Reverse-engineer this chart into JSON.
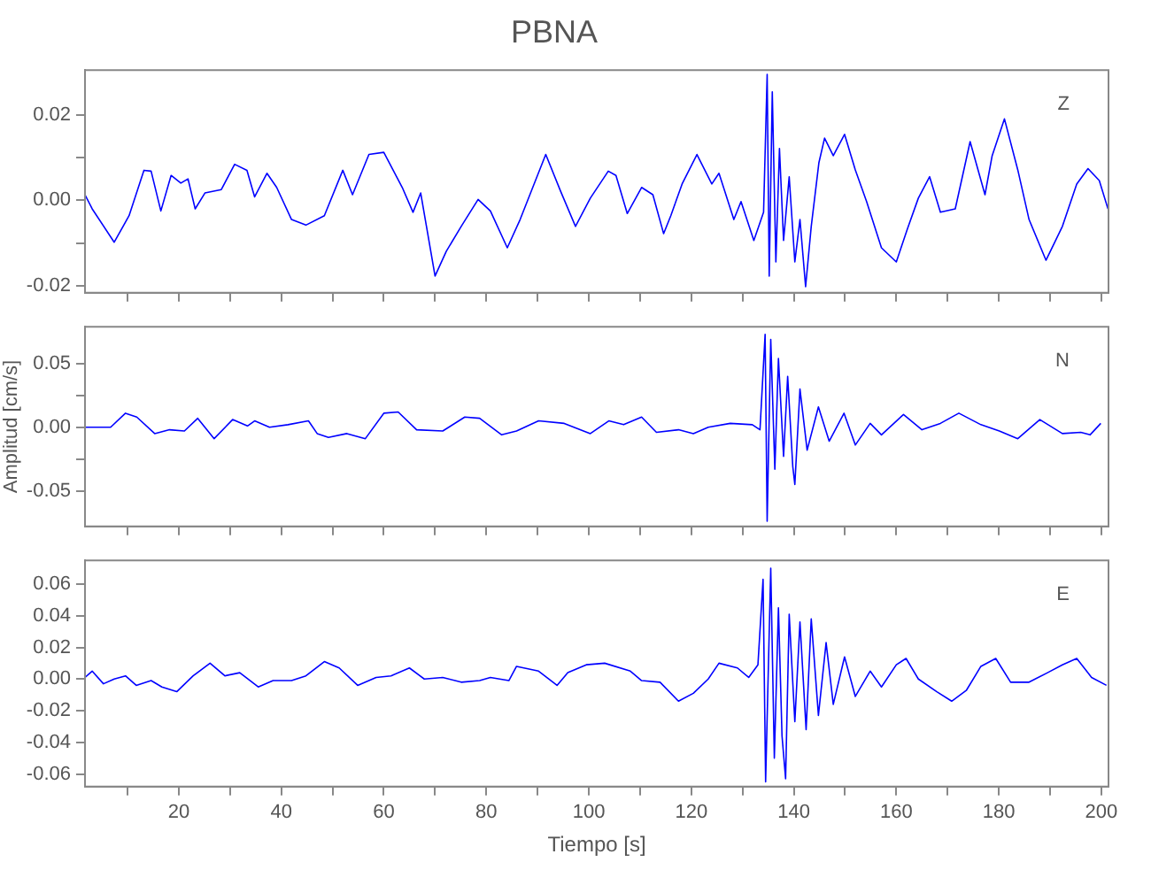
{
  "chart_data": [
    {
      "type": "line",
      "title": "PBNA",
      "annotations": [
        "Z"
      ],
      "tick_labels": "y",
      "grid": false,
      "legend": false,
      "marker": "none",
      "line_style": "solid",
      "xlim": [
        1.7,
        201.4
      ],
      "xticks": [
        {
          "value": 10,
          "label": null
        },
        {
          "value": 20,
          "label": null
        },
        {
          "value": 30,
          "label": null
        },
        {
          "value": 40,
          "label": null
        },
        {
          "value": 50,
          "label": null
        },
        {
          "value": 60,
          "label": null
        },
        {
          "value": 70,
          "label": null
        },
        {
          "value": 80,
          "label": null
        },
        {
          "value": 90,
          "label": null
        },
        {
          "value": 100,
          "label": null
        },
        {
          "value": 110,
          "label": null
        },
        {
          "value": 120,
          "label": null
        },
        {
          "value": 130,
          "label": null
        },
        {
          "value": 140,
          "label": null
        },
        {
          "value": 150,
          "label": null
        },
        {
          "value": 160,
          "label": null
        },
        {
          "value": 170,
          "label": null
        },
        {
          "value": 180,
          "label": null
        },
        {
          "value": 190,
          "label": null
        },
        {
          "value": 200,
          "label": null
        }
      ],
      "ylim": [
        -0.0216,
        0.0304
      ],
      "yticks": [
        {
          "value": -0.02,
          "label": "-0.02"
        },
        {
          "value": -0.01,
          "label": null
        },
        {
          "value": 0,
          "label": "0.00"
        },
        {
          "value": 0.01,
          "label": null
        },
        {
          "value": 0.02,
          "label": "0.02"
        }
      ],
      "x": [
        1.7,
        3.1,
        7.4,
        10.3,
        13.2,
        14.6,
        16.5,
        18.5,
        20.4,
        21.8,
        23.2,
        25.1,
        28.3,
        30.9,
        33.3,
        34.8,
        37.2,
        39.1,
        42,
        44.8,
        48.4,
        52,
        53.9,
        57.1,
        60,
        63.6,
        65.7,
        67.2,
        70,
        72.2,
        75.1,
        78.4,
        80.8,
        84.1,
        86.6,
        91.6,
        94.5,
        97.4,
        100.3,
        103.8,
        105.3,
        107.5,
        110.3,
        112.5,
        114.6,
        116,
        118.2,
        121.1,
        124,
        125.4,
        128.3,
        129.7,
        132.2,
        134.1,
        134.8,
        135.2,
        135.8,
        136.5,
        137.2,
        138,
        139.1,
        140.2,
        141.2,
        142.3,
        143.4,
        144.9,
        146,
        147.7,
        149.9,
        152,
        154.2,
        157.1,
        160,
        162.1,
        164.3,
        166.5,
        168.6,
        171.5,
        174.4,
        177.3,
        178.7,
        181.1,
        183.7,
        185.9,
        189.2,
        192.4,
        195.2,
        197.4,
        199.6,
        201.3
      ],
      "series": [
        {
          "color": "#0000ff",
          "values": [
            0.0013,
            -0.002,
            -0.0098,
            -0.0036,
            0.007,
            0.0068,
            -0.0025,
            0.0058,
            0.004,
            0.005,
            -0.002,
            0.0017,
            0.0025,
            0.0084,
            0.007,
            0.0008,
            0.0063,
            0.003,
            -0.0045,
            -0.0058,
            -0.0036,
            0.007,
            0.0013,
            0.0107,
            0.0112,
            0.003,
            -0.0028,
            0.0017,
            -0.0177,
            -0.0119,
            -0.0061,
            0.0002,
            -0.0025,
            -0.0111,
            -0.0045,
            0.0107,
            0.0021,
            -0.0061,
            0.0005,
            0.0068,
            0.0058,
            -0.0031,
            0.003,
            0.0013,
            -0.0078,
            -0.0036,
            0.0038,
            0.0107,
            0.0038,
            0.0063,
            -0.0045,
            -0.0003,
            -0.0094,
            -0.0028,
            0.0294,
            -0.0177,
            0.0253,
            -0.0144,
            0.0121,
            -0.0094,
            0.0055,
            -0.0144,
            -0.0045,
            -0.0202,
            -0.0061,
            0.0088,
            0.0145,
            0.0104,
            0.0154,
            0.0071,
            -0.0003,
            -0.0111,
            -0.0144,
            -0.0069,
            0.0005,
            0.0055,
            -0.0028,
            -0.002,
            0.0137,
            0.0013,
            0.0104,
            0.019,
            0.0071,
            -0.0045,
            -0.014,
            -0.0061,
            0.0038,
            0.0074,
            0.0046,
            -0.002
          ]
        }
      ]
    },
    {
      "type": "line",
      "ylabel": "Amplitud [cm/s]",
      "annotations": [
        "N"
      ],
      "tick_labels": "y",
      "grid": false,
      "legend": false,
      "marker": "none",
      "line_style": "solid",
      "xlim": [
        1.7,
        201.4
      ],
      "xticks": [
        {
          "value": 10,
          "label": null
        },
        {
          "value": 20,
          "label": null
        },
        {
          "value": 30,
          "label": null
        },
        {
          "value": 40,
          "label": null
        },
        {
          "value": 50,
          "label": null
        },
        {
          "value": 60,
          "label": null
        },
        {
          "value": 70,
          "label": null
        },
        {
          "value": 80,
          "label": null
        },
        {
          "value": 90,
          "label": null
        },
        {
          "value": 100,
          "label": null
        },
        {
          "value": 110,
          "label": null
        },
        {
          "value": 120,
          "label": null
        },
        {
          "value": 130,
          "label": null
        },
        {
          "value": 140,
          "label": null
        },
        {
          "value": 150,
          "label": null
        },
        {
          "value": 160,
          "label": null
        },
        {
          "value": 170,
          "label": null
        },
        {
          "value": 180,
          "label": null
        },
        {
          "value": 190,
          "label": null
        },
        {
          "value": 200,
          "label": null
        }
      ],
      "ylim": [
        -0.078,
        0.079
      ],
      "yticks": [
        {
          "value": -0.05,
          "label": "-0.05"
        },
        {
          "value": -0.025,
          "label": null
        },
        {
          "value": 0,
          "label": "0.00"
        },
        {
          "value": 0.025,
          "label": null
        },
        {
          "value": 0.05,
          "label": "0.05"
        }
      ],
      "x": [
        1.7,
        6.7,
        9.6,
        11.8,
        15.3,
        18.2,
        21.1,
        23.7,
        26.9,
        30.5,
        33.4,
        34.8,
        37.7,
        41.3,
        45.3,
        47,
        49.2,
        52.8,
        56.4,
        60,
        62.8,
        66.4,
        71.5,
        75.8,
        78.7,
        83,
        85.9,
        90.2,
        95.2,
        100.3,
        103.9,
        106.8,
        110.3,
        113.2,
        117.5,
        120.4,
        123.3,
        127.6,
        131.9,
        133.4,
        134.4,
        134.8,
        135.5,
        136.3,
        137,
        138,
        138.8,
        139.8,
        140.2,
        141.2,
        142.6,
        144.8,
        146.9,
        149.8,
        152,
        154.9,
        157.1,
        161.4,
        165,
        168.6,
        172.2,
        176.5,
        180.1,
        183.7,
        188,
        192.4,
        196,
        197.8,
        199.9
      ],
      "series": [
        {
          "color": "#0000ff",
          "values": [
            0,
            0,
            0.011,
            0.008,
            -0.005,
            -0.002,
            -0.003,
            0.007,
            -0.009,
            0.006,
            0.001,
            0.005,
            0,
            0.002,
            0.005,
            -0.005,
            -0.008,
            -0.005,
            -0.009,
            0.011,
            0.012,
            -0.002,
            -0.003,
            0.008,
            0.007,
            -0.006,
            -0.003,
            0.005,
            0.003,
            -0.005,
            0.005,
            0.002,
            0.008,
            -0.004,
            -0.002,
            -0.005,
            0,
            0.003,
            0.002,
            -0.002,
            0.073,
            -0.074,
            0.069,
            -0.033,
            0.054,
            -0.023,
            0.04,
            -0.031,
            -0.045,
            0.03,
            -0.018,
            0.016,
            -0.011,
            0.011,
            -0.014,
            0.003,
            -0.006,
            0.01,
            -0.002,
            0.003,
            0.011,
            0.002,
            -0.003,
            -0.009,
            0.006,
            -0.005,
            -0.004,
            -0.006,
            0.003
          ]
        }
      ]
    },
    {
      "type": "line",
      "xlabel": "Tiempo [s]",
      "annotations": [
        "E"
      ],
      "grid": false,
      "legend": false,
      "marker": "none",
      "line_style": "solid",
      "xlim": [
        1.7,
        201.4
      ],
      "xticks": [
        {
          "value": 10,
          "label": null
        },
        20,
        {
          "value": 30,
          "label": null
        },
        40,
        {
          "value": 50,
          "label": null
        },
        60,
        {
          "value": 70,
          "label": null
        },
        80,
        {
          "value": 90,
          "label": null
        },
        100,
        {
          "value": 110,
          "label": null
        },
        120,
        {
          "value": 130,
          "label": null
        },
        140,
        {
          "value": 150,
          "label": null
        },
        160,
        {
          "value": 170,
          "label": null
        },
        180,
        {
          "value": 190,
          "label": null
        },
        200
      ],
      "ylim": [
        -0.068,
        0.075
      ],
      "yticks": [
        {
          "value": -0.06,
          "label": "-0.06"
        },
        {
          "value": -0.04,
          "label": "-0.04"
        },
        {
          "value": -0.02,
          "label": "-0.02"
        },
        {
          "value": 0,
          "label": "0.00"
        },
        {
          "value": 0.02,
          "label": "0.02"
        },
        {
          "value": 0.04,
          "label": "0.04"
        },
        {
          "value": 0.06,
          "label": "0.06"
        }
      ],
      "x": [
        1.7,
        3.1,
        5.3,
        7.4,
        9.6,
        11.7,
        14.6,
        16.7,
        19.6,
        22.8,
        26.1,
        29,
        31.9,
        35.5,
        38.4,
        42,
        44.8,
        48.4,
        51.3,
        54.9,
        58.5,
        61.4,
        65,
        67.9,
        71.5,
        75.1,
        78.7,
        80.8,
        84.4,
        85.9,
        90.2,
        93.8,
        95.9,
        99.5,
        103.1,
        108.1,
        110.3,
        113.9,
        117.5,
        120.4,
        123.3,
        125.4,
        129,
        131.2,
        133,
        134,
        134.5,
        135.5,
        136.2,
        137,
        137.7,
        138.4,
        139.1,
        140.2,
        141.2,
        142.4,
        143.4,
        144.8,
        146.3,
        147.7,
        149.9,
        152,
        154.9,
        157.1,
        160,
        161.9,
        164.3,
        167.9,
        170.8,
        173.7,
        176.5,
        179.4,
        182.3,
        185.9,
        189.5,
        192.4,
        195.2,
        198.1,
        201
      ],
      "series": [
        {
          "color": "#0000ff",
          "values": [
            0.001,
            0.005,
            -0.003,
            0,
            0.002,
            -0.004,
            -0.001,
            -0.005,
            -0.008,
            0.002,
            0.01,
            0.002,
            0.004,
            -0.005,
            -0.001,
            -0.001,
            0.002,
            0.011,
            0.007,
            -0.004,
            0.001,
            0.002,
            0.007,
            0,
            0.001,
            -0.002,
            -0.001,
            0.001,
            -0.001,
            0.008,
            0.005,
            -0.004,
            0.004,
            0.009,
            0.01,
            0.005,
            -0.001,
            -0.002,
            -0.014,
            -0.009,
            0,
            0.01,
            0.007,
            0.001,
            0.009,
            0.063,
            -0.065,
            0.07,
            -0.05,
            0.045,
            -0.036,
            -0.063,
            0.041,
            -0.027,
            0.036,
            -0.032,
            0.038,
            -0.023,
            0.023,
            -0.016,
            0.014,
            -0.011,
            0.005,
            -0.005,
            0.009,
            0.013,
            0,
            -0.008,
            -0.014,
            -0.007,
            0.008,
            0.013,
            -0.002,
            -0.002,
            0.004,
            0.009,
            0.013,
            0.001,
            -0.004
          ]
        }
      ]
    }
  ]
}
